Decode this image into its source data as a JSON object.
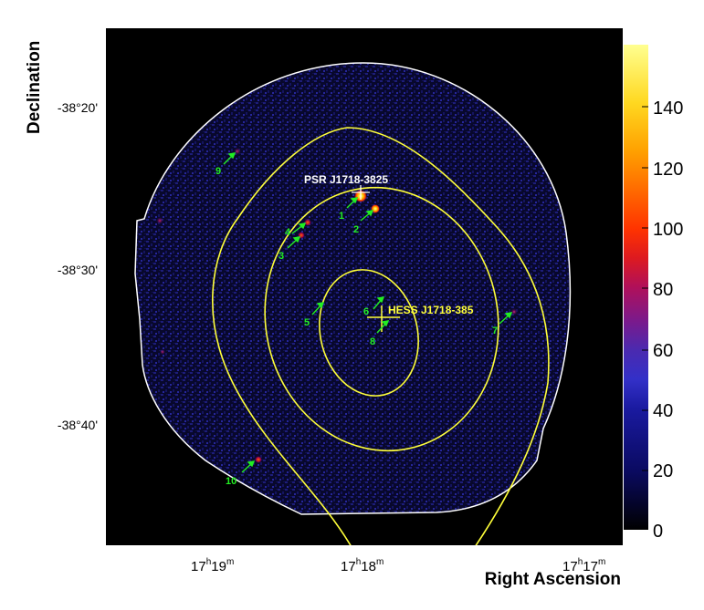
{
  "axes": {
    "y_title": "Declination",
    "x_title": "Right Ascension",
    "y_ticks": [
      "-38°20'",
      "-38°30'",
      "-38°40'"
    ],
    "x_ticks": [
      {
        "h": "17",
        "m": "19"
      },
      {
        "h": "17",
        "m": "18"
      },
      {
        "h": "17",
        "m": "17"
      }
    ]
  },
  "colorbar": {
    "ticks": [
      "0",
      "20",
      "40",
      "60",
      "80",
      "100",
      "120",
      "140"
    ]
  },
  "labels": {
    "psr": "PSR J1718-3825",
    "hess": "HESS J1718-385"
  },
  "sources": [
    "1",
    "2",
    "3",
    "4",
    "5",
    "6",
    "7",
    "8",
    "9",
    "10"
  ],
  "colors": {
    "frame_background": "#000000",
    "contour": "#ffff3a",
    "source_marker": "#22ee22",
    "psr_label": "#ffffff",
    "hess_label": "#ffff3a",
    "fov_outline": "#ffffff"
  }
}
